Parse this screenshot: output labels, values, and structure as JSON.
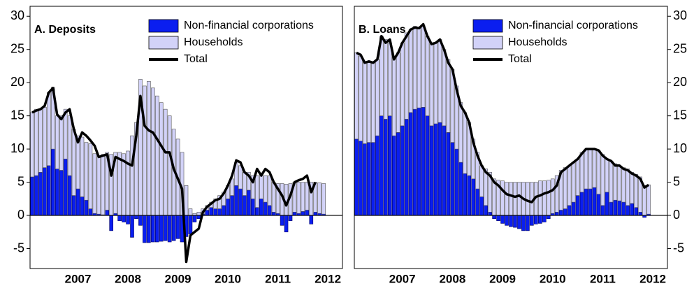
{
  "chart_data": [
    {
      "type": "bar",
      "stacked": true,
      "title": "A. Deposits",
      "legend": "upper right",
      "y_axis_side": "left",
      "ylim": [
        -8,
        31.5
      ],
      "yticks": [
        -5,
        0,
        5,
        10,
        15,
        20,
        25,
        30
      ],
      "categories": [
        null,
        null,
        null,
        null,
        null,
        null,
        null,
        null,
        null,
        null,
        null,
        "2007",
        null,
        null,
        null,
        null,
        null,
        null,
        null,
        null,
        null,
        null,
        null,
        "2008",
        null,
        null,
        null,
        null,
        null,
        null,
        null,
        null,
        null,
        null,
        null,
        "2009",
        null,
        null,
        null,
        null,
        null,
        null,
        null,
        null,
        null,
        null,
        null,
        "2010",
        null,
        null,
        null,
        null,
        null,
        null,
        null,
        null,
        null,
        null,
        null,
        "2011",
        null,
        null,
        null,
        null,
        null,
        null,
        null,
        null,
        null,
        null,
        null,
        "2012",
        null,
        null,
        null
      ],
      "series": [
        {
          "name": "Non-financial corporations",
          "type": "bar",
          "color": "#0a1ef0",
          "values": [
            5.8,
            6,
            6.5,
            7.2,
            7.5,
            10,
            7,
            6.8,
            8.5,
            6,
            3,
            4,
            2.8,
            2.3,
            1,
            0.3,
            0.2,
            0.1,
            0.8,
            -2.3,
            0.3,
            -0.8,
            -1,
            -1.3,
            -3.3,
            -0.5,
            -1.5,
            -4.1,
            -4.1,
            -4,
            -4,
            -3.9,
            -3.8,
            -4,
            -3.8,
            -3.5,
            -4,
            -3.2,
            -2.8,
            -1,
            -0.5,
            0.2,
            0.8,
            1.2,
            1,
            1,
            1.5,
            2.5,
            3,
            4.5,
            4,
            3,
            3.8,
            2.5,
            1.2,
            2.5,
            2,
            1.5,
            0.5,
            0.3,
            -1.5,
            -2.5,
            -0.8,
            0.5,
            0.3,
            0.6,
            0.8,
            -1.3,
            0.5,
            0.3,
            0.2,
            null,
            null,
            null,
            null
          ]
        },
        {
          "name": "Households",
          "type": "bar",
          "color": "#d2d2f8",
          "values": [
            9.7,
            10,
            9.5,
            9.1,
            11,
            9.3,
            8,
            8.2,
            7.5,
            9,
            10,
            8,
            9,
            8.7,
            9.8,
            9,
            8.8,
            9.1,
            8.7,
            9.2,
            9.2,
            9.5,
            9.3,
            9.7,
            12,
            14,
            20.5,
            19.5,
            20.2,
            19.2,
            18,
            17,
            16,
            15,
            13,
            11.5,
            9.5,
            4.5,
            1,
            0.3,
            0.5,
            0.8,
            0.7,
            0.8,
            1.5,
            2,
            2,
            2,
            2.5,
            3.5,
            3.5,
            3.5,
            2.7,
            3.5,
            4.8,
            3.5,
            4,
            4.5,
            4.5,
            4.5,
            4.8,
            4.7,
            4.8,
            4.5,
            4.7,
            4.4,
            4.2,
            5,
            4.5,
            4.6,
            4.6,
            null,
            null,
            null,
            null
          ]
        },
        {
          "name": "Total",
          "type": "line",
          "color": "#000000",
          "values": [
            15.5,
            15.8,
            16,
            16.5,
            18.5,
            19.2,
            15.2,
            14.5,
            15.5,
            16,
            13,
            11,
            12.5,
            12,
            11.3,
            10.5,
            8.8,
            9,
            9.2,
            6,
            8.8,
            8.5,
            8.2,
            7.8,
            7.5,
            12,
            18,
            13.5,
            12.8,
            12.5,
            11.5,
            10.5,
            9.5,
            9.5,
            7,
            5.5,
            4,
            -7,
            -3,
            -2.5,
            -2,
            0.5,
            1.3,
            1.8,
            2.3,
            2.5,
            3.3,
            4.5,
            6,
            8.3,
            8,
            6.5,
            6,
            5,
            7,
            6,
            7,
            6.5,
            5,
            4,
            3,
            1.5,
            3,
            5,
            5.3,
            5.5,
            6,
            3.5,
            5,
            null,
            null,
            null,
            null,
            null,
            null
          ]
        }
      ]
    },
    {
      "type": "bar",
      "stacked": true,
      "title": "B. Loans",
      "legend": "upper right",
      "y_axis_side": "right",
      "ylim": [
        -8,
        31.5
      ],
      "yticks": [
        -5,
        0,
        5,
        10,
        15,
        20,
        25,
        30
      ],
      "categories": [
        null,
        null,
        null,
        null,
        null,
        null,
        null,
        null,
        null,
        null,
        null,
        "2007",
        null,
        null,
        null,
        null,
        null,
        null,
        null,
        null,
        null,
        null,
        null,
        "2008",
        null,
        null,
        null,
        null,
        null,
        null,
        null,
        null,
        null,
        null,
        null,
        "2009",
        null,
        null,
        null,
        null,
        null,
        null,
        null,
        null,
        null,
        null,
        null,
        "2010",
        null,
        null,
        null,
        null,
        null,
        null,
        null,
        null,
        null,
        null,
        null,
        "2011",
        null,
        null,
        null,
        null,
        null,
        null,
        null,
        null,
        null,
        null,
        null,
        "2012",
        null,
        null,
        null
      ],
      "series": [
        {
          "name": "Non-financial corporations",
          "type": "bar",
          "color": "#0a1ef0",
          "values": [
            11.5,
            11.2,
            10.8,
            11,
            11,
            12,
            15,
            14.5,
            15,
            12,
            12.5,
            13.5,
            14.5,
            15.5,
            16,
            16.2,
            16.3,
            15,
            13.5,
            13.8,
            14,
            13.5,
            12.5,
            11,
            10,
            8,
            6.3,
            6,
            5.5,
            4,
            2.8,
            1.5,
            0.5,
            -0.5,
            -0.8,
            -1.2,
            -1.5,
            -1.7,
            -1.8,
            -2,
            -2.3,
            -2.3,
            -1.5,
            -1.3,
            -1.2,
            -1,
            -0.5,
            0.3,
            0.5,
            0.8,
            1,
            1.5,
            2,
            3,
            3.5,
            4,
            4,
            4.2,
            3.2,
            1.5,
            3.5,
            2,
            2.3,
            2.2,
            2,
            1.5,
            1.8,
            1.2,
            0.5,
            -0.3,
            0.2,
            null,
            null,
            null,
            null
          ]
        },
        {
          "name": "Households",
          "type": "bar",
          "color": "#d2d2f8",
          "values": [
            13,
            12.8,
            12.4,
            12,
            12,
            11.5,
            12,
            12,
            11,
            12,
            12,
            12.5,
            13,
            12.5,
            12.5,
            12.1,
            12.3,
            12,
            12.5,
            12.2,
            12.5,
            11.5,
            11,
            11,
            9.5,
            9,
            9.2,
            8,
            6,
            5.5,
            4.7,
            5.5,
            6,
            5.5,
            5.3,
            5.2,
            5,
            5,
            5,
            5,
            5,
            5,
            5,
            5,
            5.2,
            5.2,
            5.3,
            5.2,
            5.5,
            6,
            6.2,
            6,
            6,
            5.5,
            6,
            6,
            6,
            5.8,
            6.6,
            7.7,
            5,
            6.2,
            5.5,
            5.3,
            5.2,
            5.5,
            4.7,
            5,
            5.3,
            4.5,
            4.4,
            null,
            null,
            null,
            null
          ]
        },
        {
          "name": "Total",
          "type": "line",
          "color": "#000000",
          "values": [
            24.5,
            24.2,
            23,
            23.2,
            23,
            23.5,
            27,
            26,
            26.5,
            23.5,
            24.5,
            26,
            27,
            28,
            28.3,
            28.2,
            28.8,
            27,
            25.8,
            26,
            26.5,
            25,
            23,
            22,
            19,
            16.5,
            15.5,
            14,
            11,
            9,
            7.5,
            6.5,
            6,
            5,
            4.5,
            3.8,
            3.2,
            3,
            2.8,
            3,
            2.5,
            2.2,
            2,
            2.8,
            3,
            3.3,
            3.5,
            3.8,
            4.5,
            6.5,
            7,
            7.5,
            8,
            8.5,
            9.3,
            10,
            10,
            10,
            9.8,
            9,
            8.5,
            8.2,
            7.5,
            7.5,
            7,
            6.8,
            6.3,
            6,
            5.5,
            4.2,
            4.6,
            null,
            null,
            null,
            null
          ]
        }
      ]
    }
  ]
}
